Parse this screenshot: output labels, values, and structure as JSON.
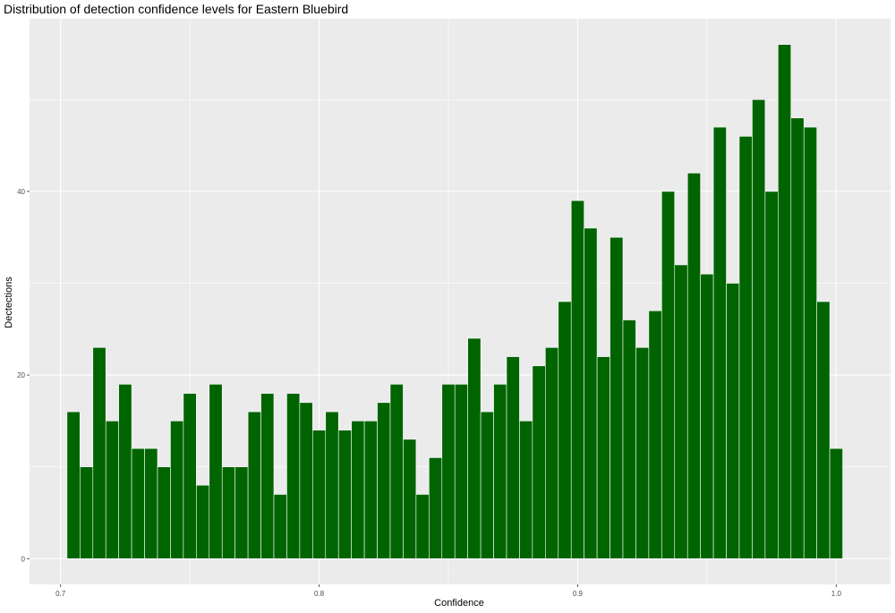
{
  "chart_data": {
    "type": "bar",
    "title": "Distribution of detection confidence levels for Eastern Bluebird",
    "xlabel": "Confidence",
    "ylabel": "Dectections",
    "bin_width": 0.005,
    "xlim": [
      0.688,
      1.021
    ],
    "ylim": [
      -2.8,
      58.8
    ],
    "x_ticks": [
      {
        "value": 0.7,
        "label": "0.7"
      },
      {
        "value": 0.8,
        "label": "0.8"
      },
      {
        "value": 0.9,
        "label": "0.9"
      },
      {
        "value": 1.0,
        "label": "1.0"
      }
    ],
    "y_ticks": [
      {
        "value": 0,
        "label": "0"
      },
      {
        "value": 20,
        "label": "20"
      },
      {
        "value": 40,
        "label": "40"
      }
    ],
    "x": [
      0.705,
      0.71,
      0.715,
      0.72,
      0.725,
      0.73,
      0.735,
      0.74,
      0.745,
      0.75,
      0.755,
      0.76,
      0.765,
      0.77,
      0.775,
      0.78,
      0.785,
      0.79,
      0.795,
      0.8,
      0.805,
      0.81,
      0.815,
      0.82,
      0.825,
      0.83,
      0.835,
      0.84,
      0.845,
      0.85,
      0.855,
      0.86,
      0.865,
      0.87,
      0.875,
      0.88,
      0.885,
      0.89,
      0.895,
      0.9,
      0.905,
      0.91,
      0.915,
      0.92,
      0.925,
      0.93,
      0.935,
      0.94,
      0.945,
      0.95,
      0.955,
      0.96,
      0.965,
      0.97,
      0.975,
      0.98,
      0.985,
      0.99,
      0.995,
      1.0
    ],
    "values": [
      16,
      10,
      23,
      15,
      19,
      12,
      12,
      10,
      15,
      18,
      8,
      19,
      10,
      10,
      16,
      18,
      7,
      18,
      17,
      14,
      16,
      14,
      15,
      15,
      17,
      19,
      13,
      7,
      11,
      19,
      19,
      24,
      16,
      19,
      22,
      15,
      21,
      23,
      28,
      39,
      36,
      22,
      35,
      26,
      23,
      27,
      40,
      32,
      42,
      31,
      47,
      30,
      46,
      50,
      40,
      56,
      48,
      47,
      28,
      12
    ],
    "bar_color": "#006400",
    "bar_outline": "#ffffff",
    "panel_background": "#ebebeb",
    "grid_color": "#ffffff",
    "grid": true,
    "legend": "none"
  }
}
